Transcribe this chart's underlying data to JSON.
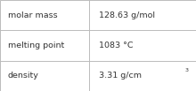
{
  "rows": [
    {
      "label": "molar mass",
      "value": "128.63 g/mol"
    },
    {
      "label": "melting point",
      "value": "1083 °C"
    },
    {
      "label": "density",
      "value": "3.31 g/cm"
    }
  ],
  "bg_color": "#ffffff",
  "border_color": "#bbbbbb",
  "text_color": "#333333",
  "label_fontsize": 6.8,
  "value_fontsize": 6.8,
  "col_split": 0.455,
  "superscript": "3",
  "superscript_row": 2
}
